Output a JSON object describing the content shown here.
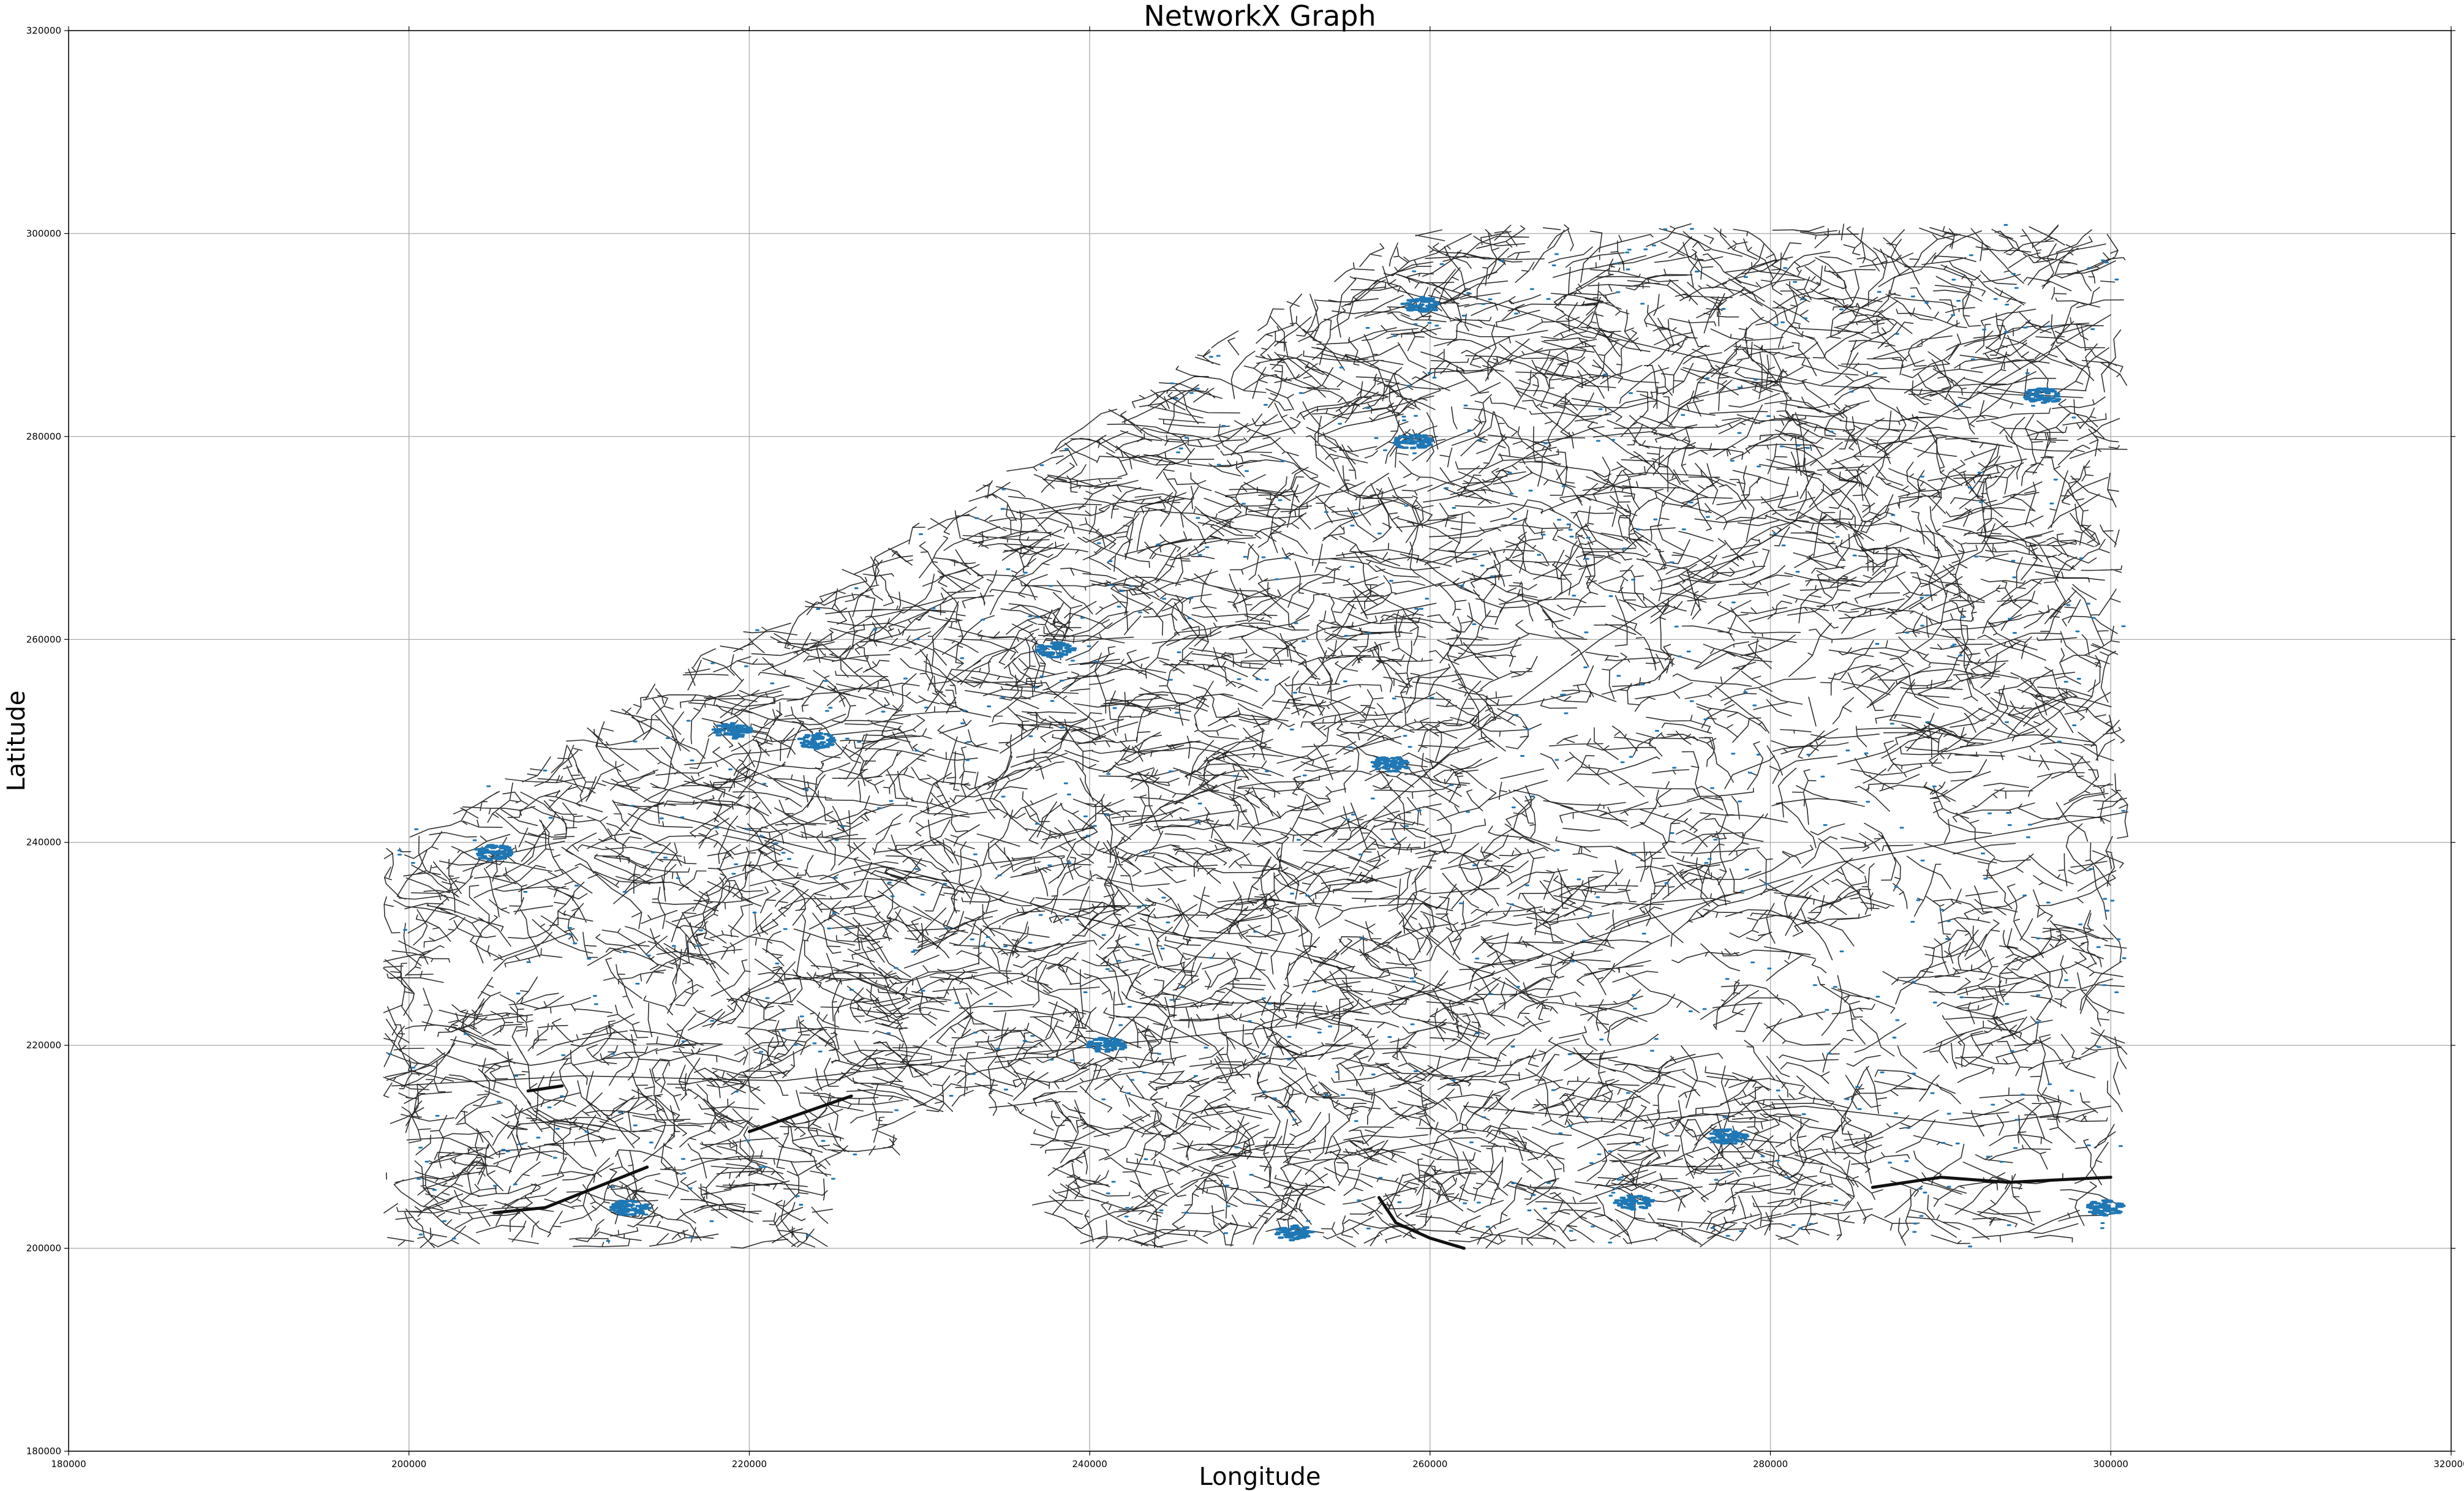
{
  "chart_data": {
    "type": "network",
    "title": "NetworkX Graph",
    "xlabel": "Longitude",
    "ylabel": "Latitude",
    "xlim": [
      180000,
      320000
    ],
    "ylim": [
      180000,
      320000
    ],
    "grid": true,
    "x_ticks": [
      "180000",
      "200000",
      "220000",
      "240000",
      "260000",
      "280000",
      "300000",
      "320000"
    ],
    "y_ticks": [
      "180000",
      "200000",
      "220000",
      "240000",
      "260000",
      "280000",
      "300000",
      "320000"
    ],
    "edge_color": "#1a1a1a",
    "node_color": "#1f77b4",
    "network_extent": {
      "x": [
        198000,
        301500
      ],
      "y": [
        200000,
        302000
      ]
    },
    "thick_roads": [
      {
        "points": [
          [
            220000,
            211500
          ],
          [
            226000,
            215000
          ]
        ]
      },
      {
        "points": [
          [
            205000,
            203500
          ],
          [
            208000,
            204000
          ],
          [
            211000,
            206000
          ],
          [
            214000,
            208000
          ]
        ]
      },
      {
        "points": [
          [
            207000,
            215500
          ],
          [
            209000,
            216000
          ]
        ]
      },
      {
        "points": [
          [
            286000,
            206000
          ],
          [
            290000,
            207000
          ],
          [
            294000,
            206500
          ],
          [
            300000,
            207000
          ]
        ]
      },
      {
        "points": [
          [
            257000,
            205000
          ],
          [
            258000,
            202500
          ],
          [
            260000,
            201000
          ],
          [
            262000,
            200000
          ]
        ]
      }
    ],
    "node_clusters": [
      {
        "x": 241000,
        "y": 220000
      },
      {
        "x": 252000,
        "y": 201500
      },
      {
        "x": 238000,
        "y": 259000
      },
      {
        "x": 257700,
        "y": 247700
      },
      {
        "x": 259000,
        "y": 279500
      },
      {
        "x": 259500,
        "y": 293000
      },
      {
        "x": 296000,
        "y": 284000
      },
      {
        "x": 299700,
        "y": 204000
      },
      {
        "x": 272000,
        "y": 204500
      },
      {
        "x": 277500,
        "y": 211000
      },
      {
        "x": 213000,
        "y": 204000
      },
      {
        "x": 219000,
        "y": 251000
      },
      {
        "x": 224000,
        "y": 250000
      },
      {
        "x": 205000,
        "y": 239000
      }
    ]
  }
}
